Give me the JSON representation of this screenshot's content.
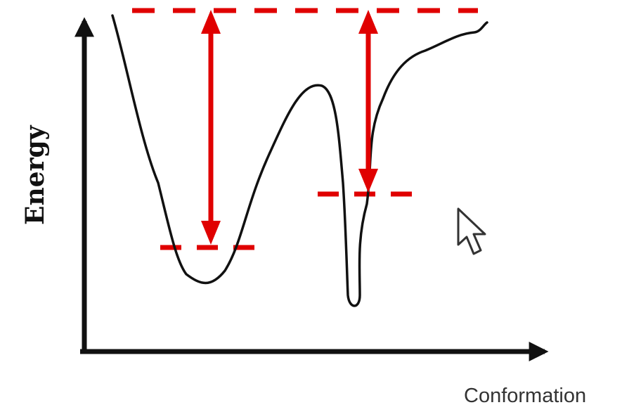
{
  "axes": {
    "y_label": "Energy",
    "x_label": "Conformation"
  },
  "colors": {
    "curve": "#111111",
    "axis": "#111111",
    "marker": "#e00000",
    "cursor_fill": "#ffffff",
    "cursor_stroke": "#333333"
  },
  "icons": {
    "cursor": "mouse-pointer-icon"
  }
}
